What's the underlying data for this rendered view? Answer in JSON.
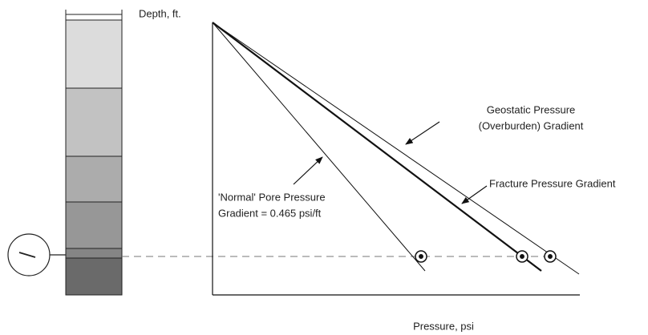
{
  "axes": {
    "y_label": "Depth, ft.",
    "x_label": "Pressure, psi"
  },
  "labels": {
    "geostatic": [
      "Geostatic Pressure",
      "(Overburden) Gradient"
    ],
    "fracture": "Fracture Pressure Gradient",
    "normal": [
      "'Normal' Pore Pressure",
      "Gradient = 0.465 psi/ft"
    ]
  }
}
